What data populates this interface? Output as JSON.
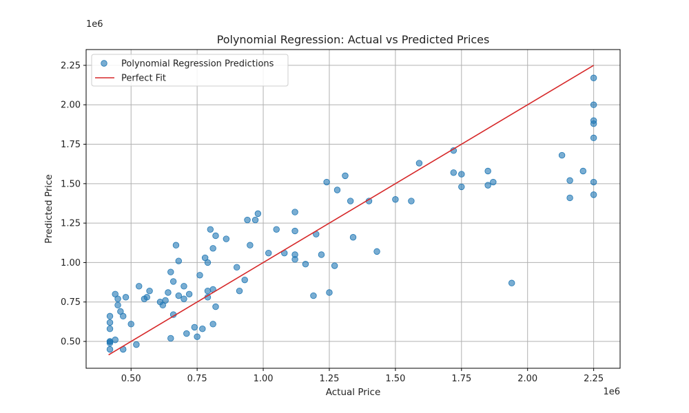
{
  "chart_data": {
    "type": "scatter",
    "title": "Polynomial Regression: Actual vs Predicted Prices",
    "xlabel": "Actual Price",
    "ylabel": "Predicted Price",
    "x_offset_label": "1e6",
    "y_offset_label": "1e6",
    "xlim": [
      0.33,
      2.35
    ],
    "ylim": [
      0.33,
      2.35
    ],
    "x_ticks": [
      0.5,
      0.75,
      1.0,
      1.25,
      1.5,
      1.75,
      2.0,
      2.25
    ],
    "x_tick_labels": [
      "0.50",
      "0.75",
      "1.00",
      "1.25",
      "1.50",
      "1.75",
      "2.00",
      "2.25"
    ],
    "y_ticks": [
      0.5,
      0.75,
      1.0,
      1.25,
      1.5,
      1.75,
      2.0,
      2.25
    ],
    "y_tick_labels": [
      "0.50",
      "0.75",
      "1.00",
      "1.25",
      "1.50",
      "1.75",
      "2.00",
      "2.25"
    ],
    "grid": true,
    "legend_position": "top-left",
    "series": [
      {
        "name": "Polynomial Regression Predictions",
        "kind": "scatter",
        "color": "#1f77b4",
        "points": [
          [
            0.42,
            0.66
          ],
          [
            0.42,
            0.62
          ],
          [
            0.42,
            0.58
          ],
          [
            0.42,
            0.5
          ],
          [
            0.42,
            0.5
          ],
          [
            0.42,
            0.49
          ],
          [
            0.42,
            0.45
          ],
          [
            0.44,
            0.51
          ],
          [
            0.44,
            0.8
          ],
          [
            0.45,
            0.73
          ],
          [
            0.45,
            0.77
          ],
          [
            0.46,
            0.69
          ],
          [
            0.47,
            0.66
          ],
          [
            0.47,
            0.45
          ],
          [
            0.48,
            0.78
          ],
          [
            0.5,
            0.61
          ],
          [
            0.52,
            0.48
          ],
          [
            0.53,
            0.85
          ],
          [
            0.55,
            0.77
          ],
          [
            0.56,
            0.78
          ],
          [
            0.57,
            0.82
          ],
          [
            0.61,
            0.75
          ],
          [
            0.62,
            0.73
          ],
          [
            0.63,
            0.76
          ],
          [
            0.64,
            0.81
          ],
          [
            0.65,
            0.94
          ],
          [
            0.65,
            0.52
          ],
          [
            0.66,
            0.67
          ],
          [
            0.66,
            0.88
          ],
          [
            0.67,
            1.11
          ],
          [
            0.68,
            0.79
          ],
          [
            0.68,
            1.01
          ],
          [
            0.7,
            0.85
          ],
          [
            0.7,
            0.77
          ],
          [
            0.71,
            0.55
          ],
          [
            0.72,
            0.8
          ],
          [
            0.74,
            0.59
          ],
          [
            0.75,
            0.53
          ],
          [
            0.76,
            0.92
          ],
          [
            0.77,
            0.58
          ],
          [
            0.78,
            1.03
          ],
          [
            0.79,
            0.78
          ],
          [
            0.79,
            1.0
          ],
          [
            0.79,
            0.82
          ],
          [
            0.8,
            1.21
          ],
          [
            0.81,
            0.83
          ],
          [
            0.81,
            0.61
          ],
          [
            0.81,
            1.09
          ],
          [
            0.82,
            1.17
          ],
          [
            0.82,
            0.72
          ],
          [
            0.86,
            1.15
          ],
          [
            0.9,
            0.97
          ],
          [
            0.91,
            0.82
          ],
          [
            0.93,
            0.89
          ],
          [
            0.94,
            1.27
          ],
          [
            0.95,
            1.11
          ],
          [
            0.97,
            1.27
          ],
          [
            0.98,
            1.31
          ],
          [
            1.02,
            1.06
          ],
          [
            1.05,
            1.21
          ],
          [
            1.08,
            1.06
          ],
          [
            1.12,
            1.32
          ],
          [
            1.12,
            1.05
          ],
          [
            1.12,
            1.02
          ],
          [
            1.12,
            1.2
          ],
          [
            1.16,
            0.99
          ],
          [
            1.19,
            0.79
          ],
          [
            1.2,
            1.18
          ],
          [
            1.22,
            1.05
          ],
          [
            1.24,
            1.51
          ],
          [
            1.25,
            0.81
          ],
          [
            1.27,
            0.98
          ],
          [
            1.28,
            1.46
          ],
          [
            1.31,
            1.55
          ],
          [
            1.33,
            1.39
          ],
          [
            1.34,
            1.16
          ],
          [
            1.4,
            1.39
          ],
          [
            1.43,
            1.07
          ],
          [
            1.5,
            1.4
          ],
          [
            1.56,
            1.39
          ],
          [
            1.59,
            1.63
          ],
          [
            1.72,
            1.71
          ],
          [
            1.72,
            1.57
          ],
          [
            1.75,
            1.48
          ],
          [
            1.75,
            1.56
          ],
          [
            1.85,
            1.58
          ],
          [
            1.85,
            1.49
          ],
          [
            1.87,
            1.51
          ],
          [
            1.94,
            0.87
          ],
          [
            2.13,
            1.68
          ],
          [
            2.16,
            1.52
          ],
          [
            2.16,
            1.41
          ],
          [
            2.21,
            1.58
          ],
          [
            2.25,
            2.17
          ],
          [
            2.25,
            2.0
          ],
          [
            2.25,
            1.9
          ],
          [
            2.25,
            1.88
          ],
          [
            2.25,
            1.79
          ],
          [
            2.25,
            1.51
          ],
          [
            2.25,
            1.43
          ]
        ]
      },
      {
        "name": "Perfect Fit",
        "kind": "line",
        "color": "#d62728",
        "points": [
          [
            0.415,
            0.415
          ],
          [
            2.25,
            2.25
          ]
        ]
      }
    ]
  }
}
